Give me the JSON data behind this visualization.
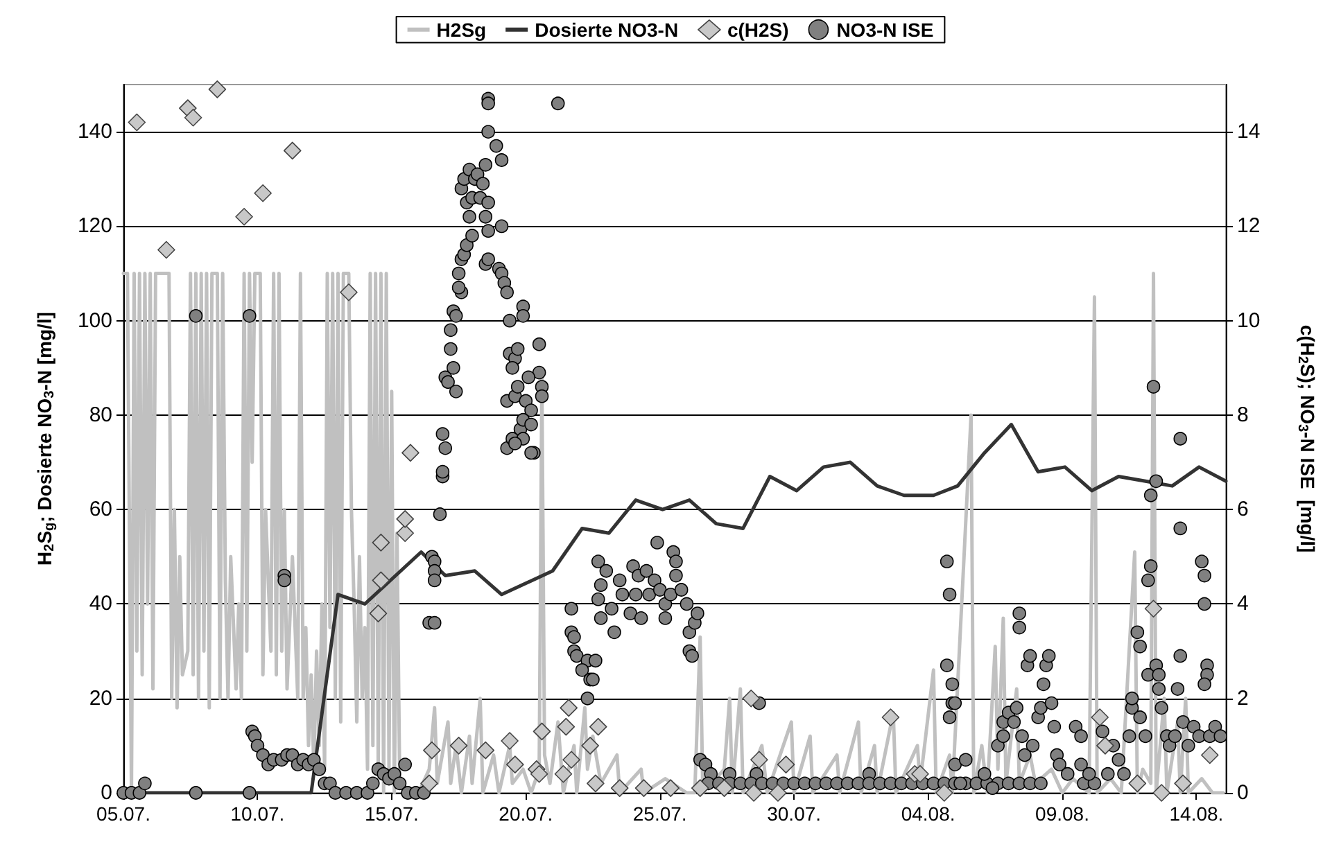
{
  "chart_data": {
    "type": "line",
    "ylabel": "H$_{2}$S$_{g}$; Dosierte NO$_{3}$-N [mg/l]",
    "y2label": "c(H$_{2}$S); NO$_{3}$-N ISE  [mg/l]",
    "xlim": [
      "--07-05",
      "--08-15T02:24"
    ],
    "xticks": [
      {
        "value": "--07-05",
        "label": "05.07."
      },
      {
        "value": "--07-10",
        "label": "10.07."
      },
      {
        "value": "--07-15",
        "label": "15.07."
      },
      {
        "value": "--07-20",
        "label": "20.07."
      },
      {
        "value": "--07-25",
        "label": "25.07."
      },
      {
        "value": "--07-30",
        "label": "30.07."
      },
      {
        "value": "--08-04",
        "label": "04.08."
      },
      {
        "value": "--08-09",
        "label": "09.08."
      },
      {
        "value": "--08-14",
        "label": "14.08."
      }
    ],
    "ylim": [
      0,
      150
    ],
    "yticks": [
      0,
      20,
      40,
      60,
      80,
      100,
      120,
      140
    ],
    "y2lim": [
      0,
      15
    ],
    "y2ticks": [
      0,
      2,
      4,
      6,
      8,
      10,
      12,
      14
    ],
    "grid": "y",
    "legend": "top",
    "line_style": "solid",
    "series": [
      {
        "name": "H2Sg",
        "type": "line",
        "marker": "none",
        "color": "#c0c0c0",
        "x": [
          "--07-05",
          "--07-05T03:36",
          "--07-05T07:12",
          "--07-05T09:36",
          "--07-05T12:00",
          "--07-05T14:24",
          "--07-05T16:48",
          "--07-05T19:12",
          "--07-05T21:36",
          "--07-06",
          "--07-06T02:24",
          "--07-06T04:48",
          "--07-06T07:12",
          "--07-06T16:48",
          "--07-06T19:12",
          "--07-06T21:36",
          "--07-07",
          "--07-07T02:24",
          "--07-07T04:48",
          "--07-07T09:36",
          "--07-07T12:00",
          "--07-07T14:24",
          "--07-07T16:48",
          "--07-07T19:12",
          "--07-07T21:36",
          "--07-08",
          "--07-08T02:24",
          "--07-08T04:48",
          "--07-08T07:12",
          "--07-08T12:00",
          "--07-08T14:24",
          "--07-08T16:48",
          "--07-08T19:12",
          "--07-08T21:36",
          "--07-09",
          "--07-09T04:48",
          "--07-09T07:12",
          "--07-09T09:36",
          "--07-09T12:00",
          "--07-09T14:24",
          "--07-09T16:48",
          "--07-09T19:12",
          "--07-09T21:36",
          "--07-10T02:24",
          "--07-10T04:48",
          "--07-10T07:12",
          "--07-10T12:00",
          "--07-10T14:24",
          "--07-10T16:48",
          "--07-10T19:12",
          "--07-10T21:36",
          "--07-11",
          "--07-11T02:24",
          "--07-11T07:12",
          "--07-11T12:00",
          "--07-11T14:24",
          "--07-11T16:48",
          "--07-11T19:12",
          "--07-11T21:36",
          "--07-12",
          "--07-12T02:24",
          "--07-12T04:48",
          "--07-12T07:12",
          "--07-12T09:36",
          "--07-12T12:00",
          "--07-12T14:24",
          "--07-12T16:48",
          "--07-12T19:12",
          "--07-12T21:36",
          "--07-13",
          "--07-13T02:24",
          "--07-13T04:48",
          "--07-13T09:36",
          "--07-13T12:00",
          "--07-13T14:24",
          "--07-13T16:48",
          "--07-13T19:12",
          "--07-13T21:36",
          "--07-14",
          "--07-14T02:24",
          "--07-14T04:48",
          "--07-14T07:12",
          "--07-14T09:36",
          "--07-14T12:00",
          "--07-14T14:24",
          "--07-14T16:48",
          "--07-14T19:12",
          "--07-14T21:36",
          "--07-15",
          "--07-15T02:24",
          "--07-15T04:48",
          "--07-15T07:12",
          "--07-15T12:00",
          "--07-16",
          "--07-16T09:36",
          "--07-16T14:24",
          "--07-16T16:48",
          "--07-17T02:24",
          "--07-17T04:48",
          "--07-17T09:36",
          "--07-17T14:24",
          "--07-17T21:36",
          "--07-18",
          "--07-18T07:12",
          "--07-18T09:36",
          "--07-18T19:12",
          "--07-19",
          "--07-19T09:36",
          "--07-19T12:00",
          "--07-19T21:36",
          "--07-20T04:48",
          "--07-20T12:00",
          "--07-20T14:24",
          "--07-20T16:48",
          "--07-20T21:36",
          "--07-21T04:48",
          "--07-21T09:36",
          "--07-21T19:12",
          "--07-21T21:36",
          "--07-22T04:48",
          "--07-22T07:12",
          "--07-22T12:00",
          "--07-22T19:12",
          "--07-23T09:36",
          "--07-23T12:00",
          "--07-24T07:12",
          "--07-24T09:36",
          "--07-25T04:48",
          "--07-26",
          "--07-26T07:12",
          "--07-26T12:00",
          "--07-26T14:24",
          "--07-27T09:36",
          "--07-27T14:24",
          "--07-27T16:48",
          "--07-28",
          "--07-28T02:24",
          "--07-28T19:12",
          "--07-29",
          "--07-29T21:36",
          "--07-30",
          "--07-30T14:24",
          "--07-30T16:48",
          "--07-31T14:24",
          "--07-31T16:48",
          "--08-01T09:36",
          "--08-01T12:00",
          "--08-02",
          "--08-02T02:24",
          "--08-02T16:48",
          "--08-02T19:12",
          "--08-03T14:24",
          "--08-03T16:48",
          "--08-04T04:48",
          "--08-04T07:12",
          "--08-04T19:12",
          "--08-04T21:36",
          "--08-05T14:24",
          "--08-05T16:48",
          "--08-06",
          "--08-06T04:48",
          "--08-06T12:00",
          "--08-06T14:24",
          "--08-06T19:12",
          "--08-06T21:36",
          "--08-07T07:12",
          "--08-07T09:36",
          "--08-07T19:12",
          "--08-08",
          "--08-08T14:24",
          "--08-09",
          "--08-09T09:36",
          "--08-10",
          "--08-10T04:48",
          "--08-10T07:12",
          "--08-10T19:12",
          "--08-11T04:48",
          "--08-11T16:48",
          "--08-11T19:12",
          "--08-12",
          "--08-12T07:12",
          "--08-12T09:36",
          "--08-12T12:00",
          "--08-12T19:12",
          "--08-12T21:36",
          "--08-13T07:12",
          "--08-13T09:36",
          "--08-13T14:24",
          "--08-13T16:48",
          "--08-14T04:48",
          "--08-14T14:24",
          "--08-15"
        ],
        "values": [
          110,
          110,
          0,
          110,
          30,
          110,
          25,
          110,
          40,
          110,
          22,
          110,
          110,
          110,
          20,
          60,
          18,
          50,
          25,
          30,
          110,
          25,
          110,
          20,
          110,
          30,
          110,
          18,
          110,
          110,
          20,
          110,
          45,
          20,
          50,
          22,
          40,
          20,
          110,
          30,
          110,
          70,
          110,
          110,
          25,
          60,
          30,
          110,
          25,
          110,
          30,
          60,
          22,
          50,
          20,
          110,
          20,
          35,
          10,
          25,
          5,
          30,
          10,
          40,
          5,
          110,
          35,
          110,
          20,
          110,
          15,
          110,
          110,
          60,
          40,
          15,
          50,
          20,
          35,
          5,
          110,
          10,
          110,
          5,
          110,
          0,
          110,
          5,
          85,
          0,
          55,
          2,
          0,
          0,
          5,
          18,
          2,
          15,
          2,
          10,
          0,
          12,
          2,
          20,
          0,
          8,
          0,
          10,
          2,
          5,
          0,
          5,
          88,
          8,
          2,
          15,
          0,
          10,
          0,
          18,
          5,
          12,
          2,
          8,
          0,
          5,
          0,
          3,
          0,
          0,
          33,
          0,
          5,
          20,
          0,
          22,
          0,
          10,
          0,
          15,
          0,
          12,
          0,
          8,
          0,
          15,
          0,
          10,
          0,
          17,
          0,
          10,
          2,
          26,
          0,
          8,
          0,
          80,
          0,
          10,
          0,
          31,
          5,
          37,
          2,
          22,
          2,
          8,
          2,
          5,
          0,
          3,
          0,
          105,
          0,
          3,
          0,
          51,
          0,
          5,
          2,
          110,
          0,
          20,
          0,
          15,
          0,
          20,
          0,
          3,
          0,
          0
        ]
      },
      {
        "name": "Dosierte NO3-N",
        "type": "line",
        "marker": "none",
        "color": "#333333",
        "x": [
          "--07-05",
          "--07-12",
          "--07-13",
          "--07-14",
          "--07-16T02:24",
          "--07-17",
          "--07-18T02:24",
          "--07-19T02:24",
          "--07-21",
          "--07-22T02:24",
          "--07-23T02:24",
          "--07-24T02:24",
          "--07-25T02:24",
          "--07-26T02:24",
          "--07-27T02:24",
          "--07-28T02:24",
          "--07-29T02:24",
          "--07-30T02:24",
          "--07-31T02:24",
          "--08-01T02:24",
          "--08-02T02:24",
          "--08-03T02:24",
          "--08-04T04:48",
          "--08-05T02:24",
          "--08-06T02:24",
          "--08-07T02:24",
          "--08-08T02:24",
          "--08-09T02:24",
          "--08-10T02:24",
          "--08-11T02:24",
          "--08-12T02:24",
          "--08-13T02:24",
          "--08-14T02:24",
          "--08-15T02:24"
        ],
        "values": [
          0,
          0,
          42,
          40,
          51,
          46,
          47,
          42,
          47,
          56,
          55,
          62,
          60,
          62,
          57,
          56,
          67,
          64,
          69,
          70,
          65,
          63,
          63,
          65,
          72,
          78,
          68,
          69,
          64,
          67,
          66,
          65,
          69,
          66
        ]
      },
      {
        "name": "c(H2S)",
        "type": "scatter",
        "axis": "y2",
        "marker": "diamond",
        "color": "#c8c8c8",
        "x": [
          "--07-05T12:00",
          "--07-06T14:24",
          "--07-07T09:36",
          "--07-07T14:24",
          "--07-08T12:00",
          "--07-09T12:00",
          "--07-10T04:48",
          "--07-11T07:12",
          "--07-13T09:36",
          "--07-14T12:00",
          "--07-14T14:24",
          "--07-14T14:24",
          "--07-15T12:00",
          "--07-15T12:00",
          "--07-15T16:48",
          "--07-16T09:36",
          "--07-16T12:00",
          "--07-17T12:00",
          "--07-18T12:00",
          "--07-19T09:36",
          "--07-19T14:24",
          "--07-20T09:36",
          "--07-20T12:00",
          "--07-20T14:24",
          "--07-21T09:36",
          "--07-21T12:00",
          "--07-21T14:24",
          "--07-21T16:48",
          "--07-22T09:36",
          "--07-22T14:24",
          "--07-22T16:48",
          "--07-23T12:00",
          "--07-24T09:36",
          "--07-25T09:36",
          "--07-26T12:00",
          "--07-27T09:36",
          "--07-28T09:36",
          "--07-28T12:00",
          "--07-28T16:48",
          "--07-29T09:36",
          "--07-29T16:48",
          "--08-02T14:24",
          "--08-03T12:00",
          "--08-03T16:48",
          "--08-04T14:24",
          "--08-10T09:36",
          "--08-10T14:24",
          "--08-11T19:12",
          "--08-12T09:36",
          "--08-12T16:48",
          "--08-13T12:00",
          "--08-14T12:00"
        ],
        "values": [
          14.2,
          11.5,
          14.5,
          14.3,
          14.9,
          12.2,
          12.7,
          13.6,
          10.6,
          3.8,
          4.5,
          5.3,
          5.5,
          5.8,
          7.2,
          0.2,
          0.9,
          1.0,
          0.9,
          1.1,
          0.6,
          0.5,
          0.4,
          1.3,
          0.4,
          1.4,
          1.8,
          0.7,
          1.0,
          0.2,
          1.4,
          0.1,
          0.1,
          0.1,
          0.1,
          0.1,
          2.0,
          0,
          0.7,
          0,
          0.6,
          1.6,
          0.4,
          0.4,
          0,
          1.6,
          1.0,
          0.2,
          3.9,
          0,
          0.2,
          0.8
        ]
      },
      {
        "name": "NO3-N ISE",
        "type": "scatter",
        "axis": "y2",
        "marker": "circle",
        "color": "#808080",
        "x": [
          "--07-05",
          "--07-05T07:12",
          "--07-05T14:24",
          "--07-05T19:12",
          "--07-07T16:48",
          "--07-07T16:48",
          "--07-09T16:48",
          "--07-09T16:48",
          "--07-11",
          "--07-11",
          "--07-09T19:12",
          "--07-09T21:36",
          "--07-10",
          "--07-10T04:48",
          "--07-10T09:36",
          "--07-10T14:24",
          "--07-10T21:36",
          "--07-11T02:24",
          "--07-11T07:12",
          "--07-11T12:00",
          "--07-11T16:48",
          "--07-11T21:36",
          "--07-12T02:24",
          "--07-12T07:12",
          "--07-12T12:00",
          "--07-12T16:48",
          "--07-12T21:36",
          "--07-13T07:12",
          "--07-13T16:48",
          "--07-14T02:24",
          "--07-14T07:12",
          "--07-14T12:00",
          "--07-14T16:48",
          "--07-14T21:36",
          "--07-15T02:24",
          "--07-15T07:12",
          "--07-15T12:00",
          "--07-15T14:24",
          "--07-15T21:36",
          "--07-16T04:48",
          "--07-16T09:36",
          "--07-16T14:24",
          "--07-16T12:00",
          "--07-16T14:24",
          "--07-16T14:24",
          "--07-16T14:24",
          "--07-16T19:12",
          "--07-16T21:36",
          "--07-16T21:36",
          "--07-16T21:36",
          "--07-17",
          "--07-17",
          "--07-17T02:24",
          "--07-17T07:12",
          "--07-17T09:36",
          "--07-17T04:48",
          "--07-17T04:48",
          "--07-17T07:12",
          "--07-17T09:36",
          "--07-17T12:00",
          "--07-17T14:24",
          "--07-17T12:00",
          "--07-17T14:24",
          "--07-17T16:48",
          "--07-17T19:12",
          "--07-18",
          "--07-17T21:36",
          "--07-17T19:12",
          "--07-17T14:24",
          "--07-17T16:48",
          "--07-17T21:36",
          "--07-18",
          "--07-18T02:24",
          "--07-18T07:12",
          "--07-18T04:48",
          "--07-18T09:36",
          "--07-18T12:00",
          "--07-18T14:24",
          "--07-18T14:24",
          "--07-18T14:24",
          "--07-18T14:24",
          "--07-18T14:24",
          "--07-18T21:36",
          "--07-18T12:00",
          "--07-19T02:24",
          "--07-19T02:24",
          "--07-19",
          "--07-19T02:24",
          "--07-19T04:48",
          "--07-19T07:12",
          "--07-19T09:36",
          "--07-19T21:36",
          "--07-19T21:36",
          "--07-18T12:00",
          "--07-18T14:24",
          "--07-19T07:12",
          "--07-19T14:24",
          "--07-19T07:12",
          "--07-19T12:00",
          "--07-19T19:12",
          "--07-19T09:36",
          "--07-19T14:24",
          "--07-19T16:48",
          "--07-20T12:00",
          "--07-20T12:00",
          "--07-20T14:24",
          "--07-20T14:24",
          "--07-19T12:00",
          "--07-19T16:48",
          "--07-20T02:24",
          "--07-20",
          "--07-20T04:48",
          "--07-19T21:36",
          "--07-20T04:48",
          "--07-19T21:36",
          "--07-19T14:24",
          "--07-20T07:12",
          "--07-20T04:48",
          "--07-21T04:48",
          "--07-21T16:48",
          "--07-21T16:48",
          "--07-21T19:12",
          "--07-21T19:12",
          "--07-21T21:36",
          "--07-22T07:12",
          "--07-22T14:24",
          "--07-22T02:24",
          "--07-22T09:36",
          "--07-22T07:12",
          "--07-22T12:00",
          "--07-22T16:48",
          "--07-22T19:12",
          "--07-22T16:48",
          "--07-22T19:12",
          "--07-23",
          "--07-23T04:48",
          "--07-23T07:12",
          "--07-23T12:00",
          "--07-23T14:24",
          "--07-23T21:36",
          "--07-24",
          "--07-24T02:24",
          "--07-24T04:48",
          "--07-24T07:12",
          "--07-24T12:00",
          "--07-24T14:24",
          "--07-24T19:12",
          "--07-24T21:36",
          "--07-25",
          "--07-25T04:48",
          "--07-25T04:48",
          "--07-25T09:36",
          "--07-25T12:00",
          "--07-25T14:24",
          "--07-25T14:24",
          "--07-25T19:12",
          "--07-26",
          "--07-26T02:24",
          "--07-26T07:12",
          "--07-26T02:24",
          "--07-26T04:48",
          "--07-26T09:36",
          "--07-26T12:00",
          "--07-26T16:48",
          "--07-26T21:36",
          "--07-27T14:24",
          "--07-28T14:24",
          "--07-28T16:48",
          "--08-01T19:12",
          "--07-26T19:12",
          "--07-27T04:48",
          "--07-27T14:24",
          "--07-28",
          "--07-28T09:36",
          "--07-28T19:12",
          "--07-29T04:48",
          "--07-29T14:24",
          "--07-30",
          "--07-30T09:36",
          "--07-30T19:12",
          "--07-31T04:48",
          "--07-31T14:24",
          "--08-01",
          "--08-01T09:36",
          "--08-01T19:12",
          "--08-02T04:48",
          "--08-02T14:24",
          "--08-03",
          "--08-03T09:36",
          "--08-03T19:12",
          "--08-04T04:48",
          "--08-04T14:24",
          "--08-05",
          "--08-05T09:36",
          "--08-05T19:12",
          "--08-06T04:48",
          "--08-06T14:24",
          "--08-07",
          "--08-07T09:36",
          "--08-07T19:12",
          "--08-08T04:48",
          "--08-09T19:12",
          "--08-10T04:48",
          "--08-04T16:48",
          "--08-04T19:12",
          "--08-04T16:48",
          "--08-04T21:36",
          "--08-04T21:36",
          "--08-05",
          "--08-04T19:12",
          "--08-05",
          "--08-05T09:36",
          "--08-05T04:48",
          "--08-06T02:24",
          "--08-06T09:36",
          "--08-06T14:24",
          "--08-06T19:12",
          "--08-06T19:12",
          "--08-07",
          "--08-07T04:48",
          "--08-07T07:12",
          "--08-07T09:36",
          "--08-07T09:36",
          "--08-07T12:00",
          "--08-07T14:24",
          "--08-07T16:48",
          "--08-07T19:12",
          "--08-07T21:36",
          "--08-08T02:24",
          "--08-08T04:48",
          "--08-08T07:12",
          "--08-08T09:36",
          "--08-08T12:00",
          "--08-08T14:24",
          "--08-08T16:48",
          "--08-08T19:12",
          "--08-08T21:36",
          "--08-09T04:48",
          "--08-09T12:00",
          "--08-09T16:48",
          "--08-09T16:48",
          "--08-10",
          "--08-10T12:00",
          "--08-10T16:48",
          "--08-10T21:36",
          "--08-11T02:24",
          "--08-11T07:12",
          "--08-11T12:00",
          "--08-11T14:24",
          "--08-11T14:24",
          "--08-11T19:12",
          "--08-11T21:36",
          "--08-11T21:36",
          "--08-12T02:24",
          "--08-12T04:48",
          "--08-12T04:48",
          "--08-12T07:12",
          "--08-12T07:12",
          "--08-12T09:36",
          "--08-12T12:00",
          "--08-12T12:00",
          "--08-12T14:24",
          "--08-12T14:24",
          "--08-12T16:48",
          "--08-12T21:36",
          "--08-13",
          "--08-13T04:48",
          "--08-13T07:12",
          "--08-13T09:36",
          "--08-13T09:36",
          "--08-13T09:36",
          "--08-13T12:00",
          "--08-13T16:48",
          "--08-13T21:36",
          "--08-14T02:24",
          "--08-14T04:48",
          "--08-14T07:12",
          "--08-14T07:12",
          "--08-14T09:36",
          "--08-14T09:36",
          "--08-14T07:12",
          "--08-14T12:00",
          "--08-14T16:48",
          "--08-14T21:36"
        ],
        "values": [
          0,
          0,
          0,
          0.2,
          0,
          10.1,
          10.1,
          0,
          4.6,
          4.5,
          1.3,
          1.2,
          1.0,
          0.8,
          0.6,
          0.7,
          0.7,
          0.8,
          0.8,
          0.6,
          0.7,
          0.6,
          0.7,
          0.5,
          0.2,
          0.2,
          0,
          0,
          0,
          0,
          0.2,
          0.5,
          0.4,
          0.3,
          0.4,
          0.2,
          0.6,
          0,
          0,
          0,
          3.6,
          3.6,
          5.0,
          4.9,
          4.7,
          4.5,
          5.9,
          6.7,
          6.8,
          7.6,
          7.3,
          8.8,
          8.7,
          9.0,
          8.5,
          9.4,
          9.8,
          10.2,
          10.1,
          11.0,
          10.6,
          10.7,
          11.3,
          11.4,
          11.6,
          11.8,
          12.2,
          12.5,
          12.8,
          13.0,
          13.2,
          12.6,
          13.0,
          12.6,
          13.1,
          12.9,
          12.2,
          12.5,
          11.9,
          14.7,
          14.6,
          14.0,
          13.7,
          13.3,
          13.4,
          12.0,
          11.1,
          11.0,
          10.8,
          10.6,
          10.0,
          10.3,
          10.1,
          11.2,
          11.3,
          8.3,
          8.4,
          7.3,
          7.5,
          7.7,
          9.3,
          9.2,
          9.4,
          9.5,
          8.9,
          8.6,
          8.4,
          9.0,
          8.6,
          8.8,
          8.3,
          8.1,
          7.9,
          7.8,
          7.5,
          7.4,
          7.2,
          7.2,
          14.6,
          3.9,
          3.4,
          3.3,
          3.0,
          2.9,
          2.8,
          2.8,
          2.6,
          2.4,
          2.0,
          2.4,
          4.9,
          4.4,
          4.1,
          3.7,
          4.7,
          3.9,
          3.4,
          4.5,
          4.2,
          3.8,
          4.8,
          4.2,
          4.6,
          3.7,
          4.7,
          4.2,
          4.5,
          5.3,
          4.3,
          3.7,
          4.0,
          4.2,
          5.1,
          4.9,
          4.6,
          4.3,
          4.0,
          3.4,
          3.6,
          3.0,
          2.9,
          3.8,
          0.7,
          0.6,
          0.4,
          0.4,
          0.4,
          1.9,
          0.4,
          0.2,
          0.2,
          0.2,
          0.2,
          0.2,
          0.2,
          0.2,
          0.2,
          0.2,
          0.2,
          0.2,
          0.2,
          0.2,
          0.2,
          0.2,
          0.2,
          0.2,
          0.2,
          0.2,
          0.2,
          0.2,
          0.2,
          0.2,
          0.2,
          0.2,
          0.2,
          0.2,
          0.2,
          0.2,
          0.2,
          0.2,
          0.2,
          0.2,
          0.2,
          4.9,
          4.2,
          2.7,
          2.3,
          1.9,
          1.9,
          1.6,
          0.6,
          0.7,
          0.2,
          0.4,
          0.1,
          1.0,
          1.2,
          1.5,
          1.7,
          1.5,
          1.8,
          3.8,
          3.5,
          1.2,
          0.8,
          2.7,
          2.9,
          1.0,
          1.6,
          1.8,
          2.3,
          2.7,
          2.9,
          1.9,
          1.4,
          0.8,
          0.6,
          0.4,
          1.4,
          1.2,
          0.6,
          0.4,
          1.3,
          0.4,
          1.0,
          0.7,
          0.4,
          1.2,
          1.8,
          2.0,
          3.4,
          3.1,
          1.6,
          1.2,
          2.5,
          4.5,
          4.8,
          6.3,
          8.6,
          6.6,
          2.7,
          2.5,
          2.2,
          1.8,
          1.2,
          1.0,
          1.2,
          2.2,
          7.5,
          5.6,
          2.9,
          1.5,
          1.0,
          1.4,
          1.2,
          4.9,
          4.6,
          4.0,
          2.7,
          2.5,
          2.3,
          1.2,
          1.4,
          1.2
        ]
      }
    ]
  }
}
